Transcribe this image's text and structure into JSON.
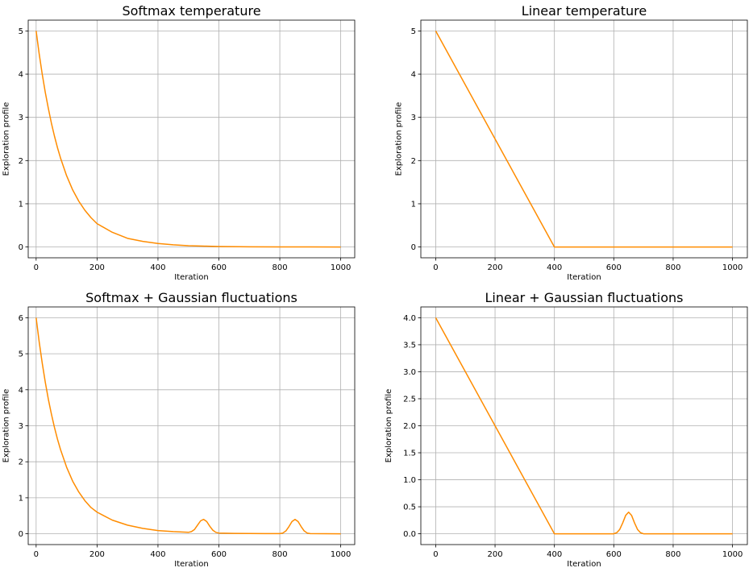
{
  "chart_data": [
    {
      "type": "line",
      "title": "Softmax temperature",
      "xlabel": "Iteration",
      "ylabel": "Exploration profile",
      "xlim": [
        -26,
        1046
      ],
      "ylim": [
        -0.25,
        5.25
      ],
      "xticks": [
        0,
        200,
        400,
        600,
        800,
        1000
      ],
      "yticks": [
        0,
        1,
        2,
        3,
        4,
        5
      ],
      "ytick_labels": [
        "0",
        "1",
        "2",
        "3",
        "4",
        "5"
      ],
      "grid": true,
      "series": [
        {
          "color": "#ff8c00",
          "x": [
            0,
            10,
            20,
            30,
            40,
            50,
            60,
            70,
            80,
            100,
            120,
            140,
            160,
            180,
            200,
            250,
            300,
            350,
            400,
            450,
            500,
            550,
            600,
            700,
            800,
            900,
            1000
          ],
          "y": [
            5.0,
            4.47,
            4.0,
            3.58,
            3.21,
            2.87,
            2.57,
            2.3,
            2.06,
            1.65,
            1.32,
            1.06,
            0.85,
            0.68,
            0.54,
            0.34,
            0.2,
            0.13,
            0.08,
            0.05,
            0.03,
            0.02,
            0.012,
            0.005,
            0.002,
            0.001,
            0.0
          ]
        }
      ]
    },
    {
      "type": "line",
      "title": "Linear temperature",
      "xlabel": "Iteration",
      "ylabel": "Exploration profile",
      "xlim": [
        -50,
        1050
      ],
      "ylim": [
        -0.25,
        5.25
      ],
      "xticks": [
        0,
        200,
        400,
        600,
        800,
        1000
      ],
      "yticks": [
        0,
        1,
        2,
        3,
        4,
        5
      ],
      "ytick_labels": [
        "0",
        "1",
        "2",
        "3",
        "4",
        "5"
      ],
      "grid": true,
      "series": [
        {
          "color": "#ff8c00",
          "x": [
            0,
            400,
            1000
          ],
          "y": [
            5.0,
            0.0,
            0.0
          ]
        }
      ]
    },
    {
      "type": "line",
      "title": "Softmax + Gaussian fluctuations",
      "xlabel": "Iteration",
      "ylabel": "Exploration profile",
      "xlim": [
        -26,
        1046
      ],
      "ylim": [
        -0.3,
        6.3
      ],
      "xticks": [
        0,
        200,
        400,
        600,
        800,
        1000
      ],
      "yticks": [
        0,
        1,
        2,
        3,
        4,
        5,
        6
      ],
      "ytick_labels": [
        "0",
        "1",
        "2",
        "3",
        "4",
        "5",
        "6"
      ],
      "grid": true,
      "series": [
        {
          "color": "#ff8c00",
          "x": [
            0,
            10,
            20,
            30,
            40,
            50,
            60,
            70,
            80,
            100,
            120,
            140,
            160,
            180,
            200,
            250,
            300,
            350,
            400,
            450,
            500,
            510,
            520,
            530,
            540,
            550,
            560,
            570,
            580,
            590,
            600,
            650,
            700,
            750,
            800,
            810,
            820,
            830,
            840,
            850,
            860,
            870,
            880,
            890,
            900,
            1000
          ],
          "y": [
            6.0,
            5.33,
            4.74,
            4.21,
            3.74,
            3.33,
            2.96,
            2.63,
            2.34,
            1.85,
            1.46,
            1.16,
            0.92,
            0.73,
            0.6,
            0.38,
            0.24,
            0.15,
            0.09,
            0.06,
            0.04,
            0.06,
            0.12,
            0.24,
            0.36,
            0.4,
            0.34,
            0.21,
            0.1,
            0.04,
            0.02,
            0.01,
            0.008,
            0.006,
            0.005,
            0.02,
            0.08,
            0.2,
            0.34,
            0.4,
            0.34,
            0.2,
            0.08,
            0.02,
            0.005,
            0.0
          ]
        }
      ]
    },
    {
      "type": "line",
      "title": "Linear + Gaussian fluctuations",
      "xlabel": "Iteration",
      "ylabel": "Exploration profile",
      "xlim": [
        -50,
        1050
      ],
      "ylim": [
        -0.2,
        4.2
      ],
      "xticks": [
        0,
        200,
        400,
        600,
        800,
        1000
      ],
      "yticks": [
        0,
        0.5,
        1,
        1.5,
        2,
        2.5,
        3,
        3.5,
        4
      ],
      "ytick_labels": [
        "0.0",
        "0.5",
        "1.0",
        "1.5",
        "2.0",
        "2.5",
        "3.0",
        "3.5",
        "4.0"
      ],
      "grid": true,
      "series": [
        {
          "color": "#ff8c00",
          "x": [
            0,
            400,
            600,
            610,
            620,
            630,
            640,
            650,
            660,
            670,
            680,
            690,
            700,
            1000
          ],
          "y": [
            4.0,
            0.0,
            0.0,
            0.02,
            0.08,
            0.2,
            0.34,
            0.4,
            0.34,
            0.2,
            0.08,
            0.02,
            0.0,
            0.0
          ]
        }
      ]
    }
  ]
}
